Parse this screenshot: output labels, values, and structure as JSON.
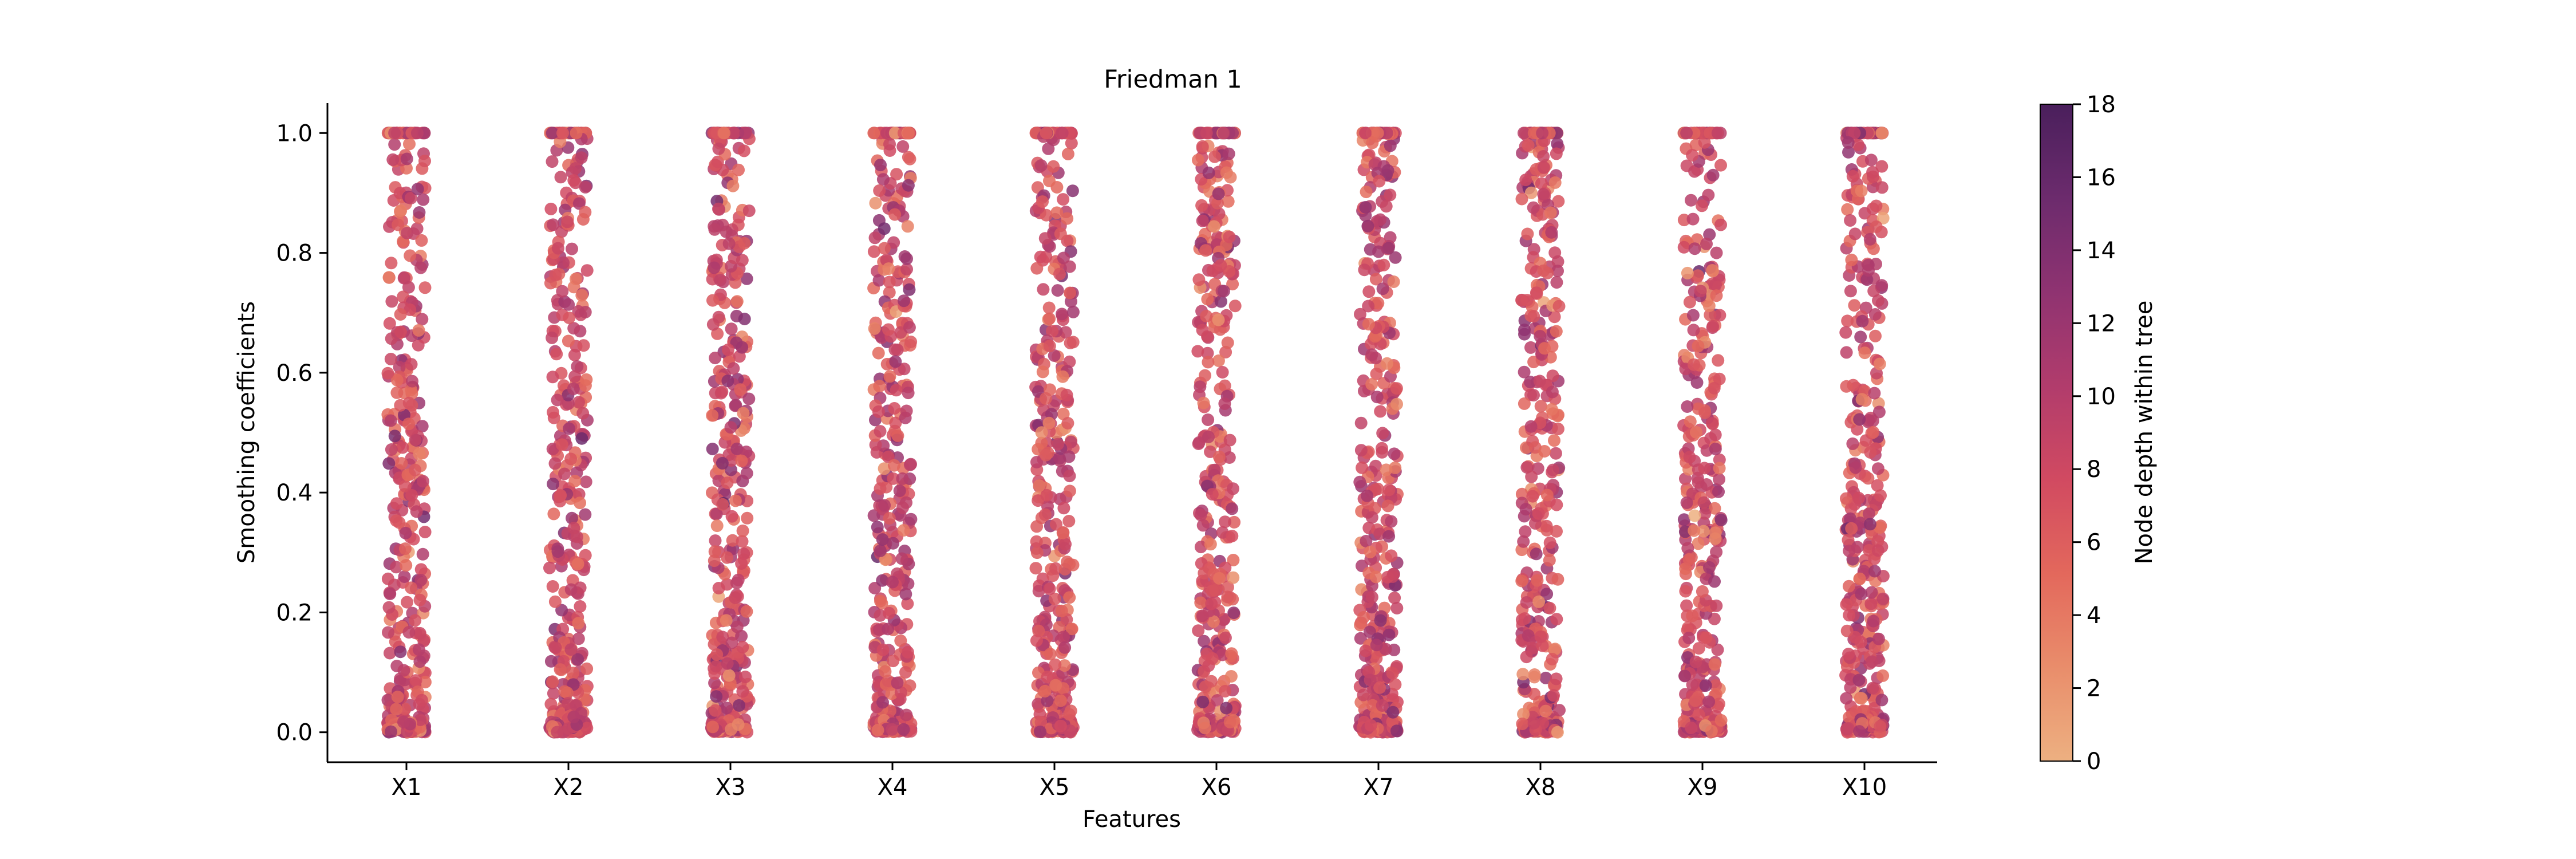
{
  "chart_data": {
    "type": "scatter",
    "subtype": "strip (jittered categorical scatter)",
    "title": "Friedman 1",
    "xlabel": "Features",
    "ylabel": "Smoothing coefficients",
    "categories": [
      "X1",
      "X2",
      "X3",
      "X4",
      "X5",
      "X6",
      "X7",
      "X8",
      "X9",
      "X10"
    ],
    "ylim": [
      -0.05,
      1.05
    ],
    "yticks": [
      0.0,
      0.2,
      0.4,
      0.6,
      0.8,
      1.0
    ],
    "ytick_labels": [
      "0.0",
      "0.2",
      "0.4",
      "0.6",
      "0.8",
      "1.0"
    ],
    "grid": false,
    "points_per_category": 400,
    "distribution_note": "Values concentrate at 0.0 and at 1.0 with a spread of points between; point colour encodes node depth.",
    "colorbar": {
      "label": "Node depth within tree",
      "min": 0,
      "max": 18,
      "ticks": [
        0,
        2,
        4,
        6,
        8,
        10,
        12,
        14,
        16,
        18
      ],
      "tick_labels": [
        "0",
        "2",
        "4",
        "6",
        "8",
        "10",
        "12",
        "14",
        "16",
        "18"
      ],
      "colormap": "flare",
      "colors": [
        "#edb081",
        "#e98d6b",
        "#e3685c",
        "#d14a61",
        "#b13c6c",
        "#8f3371",
        "#6c2b6d",
        "#4a1f5c"
      ]
    }
  }
}
